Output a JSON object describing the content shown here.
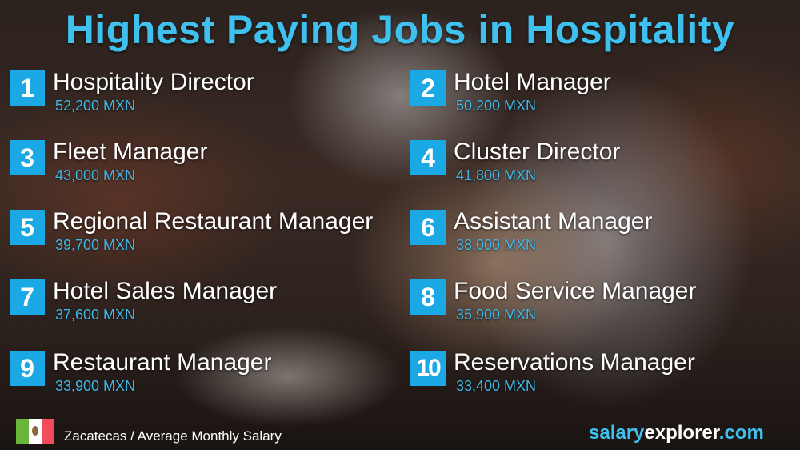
{
  "title": "Highest Paying Jobs in Hospitality",
  "jobs": [
    {
      "rank": "1",
      "name": "Hospitality Director",
      "salary": "52,200 MXN"
    },
    {
      "rank": "2",
      "name": "Hotel Manager",
      "salary": "50,200 MXN"
    },
    {
      "rank": "3",
      "name": "Fleet Manager",
      "salary": "43,000 MXN"
    },
    {
      "rank": "4",
      "name": "Cluster Director",
      "salary": "41,800 MXN"
    },
    {
      "rank": "5",
      "name": "Regional Restaurant Manager",
      "salary": "39,700 MXN"
    },
    {
      "rank": "6",
      "name": "Assistant Manager",
      "salary": "38,000 MXN"
    },
    {
      "rank": "7",
      "name": "Hotel Sales Manager",
      "salary": "37,600 MXN"
    },
    {
      "rank": "8",
      "name": "Food Service Manager",
      "salary": "35,900 MXN"
    },
    {
      "rank": "9",
      "name": "Restaurant Manager",
      "salary": "33,900 MXN"
    },
    {
      "rank": "10",
      "name": "Reservations Manager",
      "salary": "33,400 MXN"
    }
  ],
  "footer": {
    "flag_icon": "mexico-flag",
    "caption": "Zacatecas / Average Monthly Salary",
    "logo_part1": "salary",
    "logo_part2": "explorer",
    "logo_part3": ".com"
  },
  "colors": {
    "accent": "#3fc0ef",
    "badge": "#1ba9e6"
  }
}
